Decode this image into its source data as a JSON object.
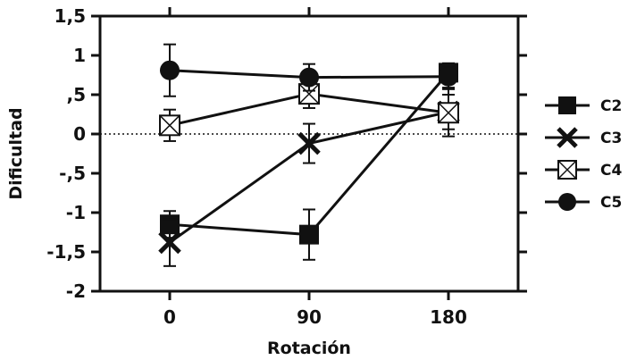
{
  "chart_data": {
    "type": "line",
    "title": "",
    "xlabel": "Rotación",
    "ylabel": "Dificultad",
    "categories": [
      "0",
      "90",
      "180"
    ],
    "x": [
      0,
      90,
      180
    ],
    "xlim": [
      -45,
      225
    ],
    "ylim": [
      -2,
      1.5
    ],
    "y_ticks": [
      1.5,
      1,
      0.5,
      0,
      -0.5,
      -1,
      -1.5,
      -2
    ],
    "y_tick_labels": [
      "1,5",
      "1",
      ",5",
      "0",
      "-,5",
      "-1",
      "-1,5",
      "-2"
    ],
    "x_tick_labels": [
      "0",
      "90",
      "180"
    ],
    "reference_line": {
      "y": 0,
      "style": "dotted"
    },
    "grid": false,
    "legend_position": "right",
    "series": [
      {
        "name": "C2",
        "marker": "filled-square",
        "color": "#111111",
        "values": [
          -1.15,
          -1.28,
          0.78
        ],
        "error": [
          0.17,
          0.32,
          0.12
        ]
      },
      {
        "name": "C3",
        "marker": "x",
        "color": "#111111",
        "values": [
          -1.38,
          -0.12,
          0.28
        ],
        "error": [
          0.3,
          0.25,
          0.22
        ]
      },
      {
        "name": "C4",
        "marker": "boxed-x",
        "color": "#111111",
        "values": [
          0.11,
          0.51,
          0.27
        ],
        "error": [
          0.2,
          0.18,
          0.3
        ]
      },
      {
        "name": "C5",
        "marker": "filled-circle",
        "color": "#111111",
        "values": [
          0.81,
          0.72,
          0.73
        ],
        "error": [
          0.33,
          0.17,
          0.14
        ]
      }
    ]
  }
}
